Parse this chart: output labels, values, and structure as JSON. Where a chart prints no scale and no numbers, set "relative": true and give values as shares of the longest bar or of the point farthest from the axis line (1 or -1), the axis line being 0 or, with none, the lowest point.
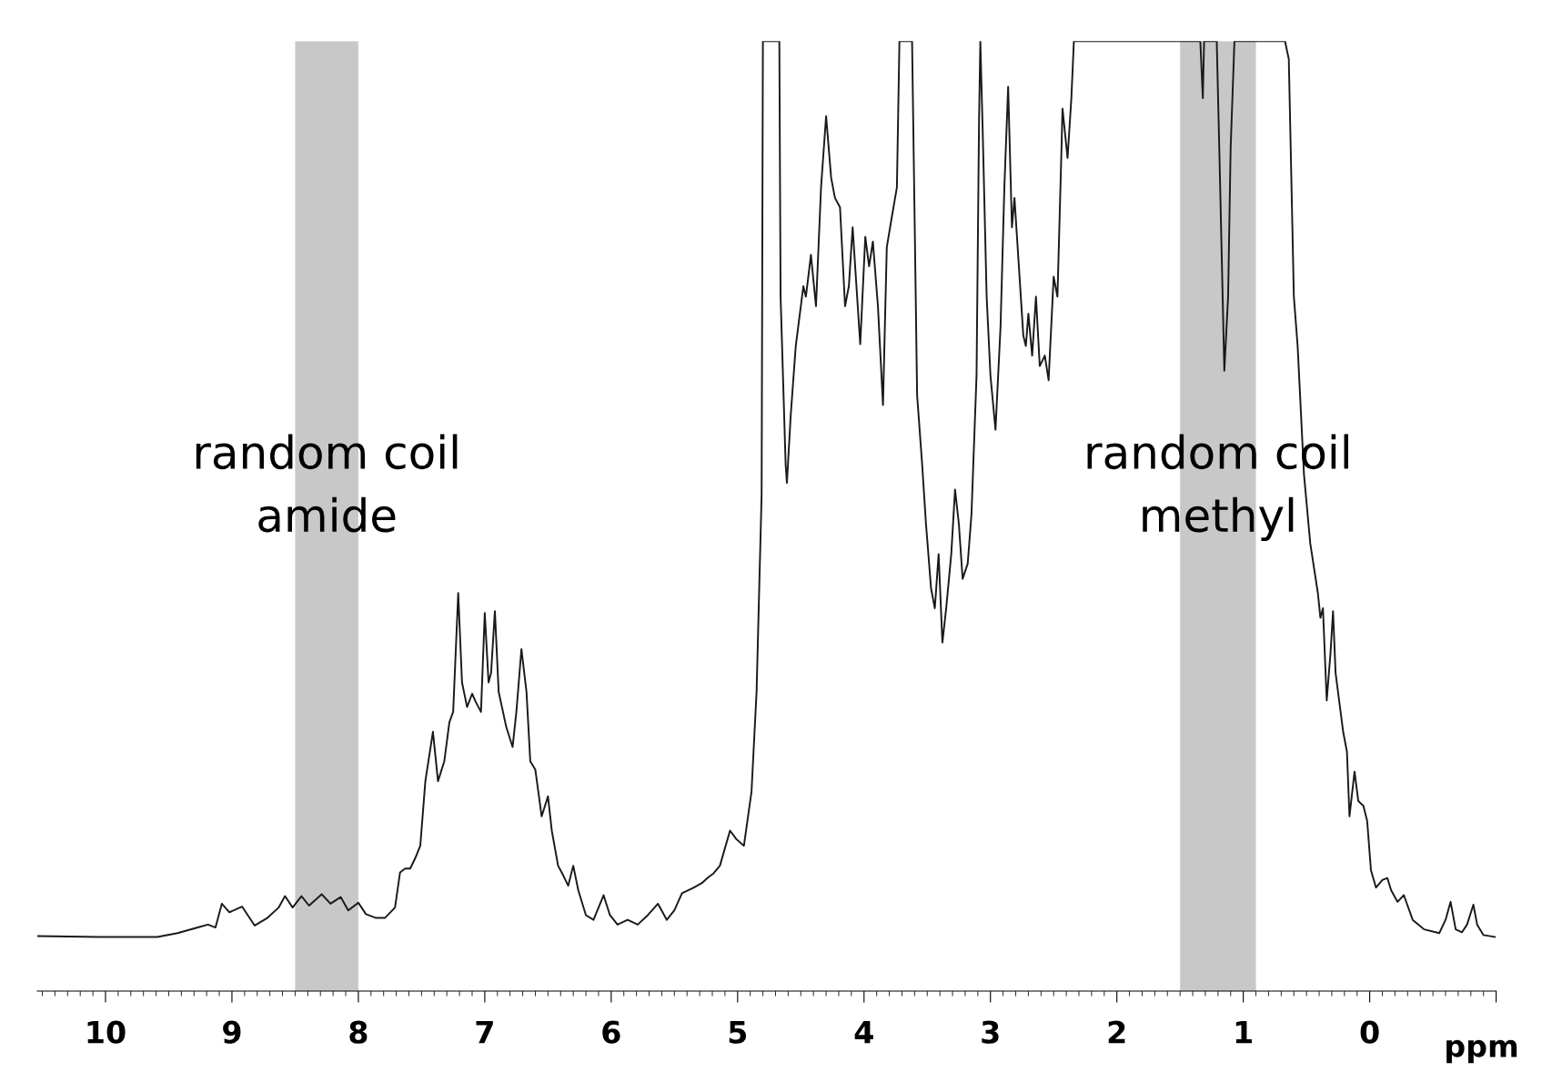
{
  "chart_data": {
    "type": "line",
    "relative": true,
    "xlabel": "ppm",
    "xlim": [
      10.54,
      -1.0
    ],
    "xticks": [
      10,
      9,
      8,
      7,
      6,
      5,
      4,
      3,
      2,
      1,
      0,
      {
        "value": -1,
        "label": null
      }
    ],
    "grid": false,
    "legend": false,
    "marker": "none",
    "line_style": "solid",
    "bands": [
      {
        "axis": "x",
        "from": 8.5,
        "to": 8.0,
        "label": "random coil\namide",
        "color": "#c8c8c8"
      },
      {
        "axis": "x",
        "from": 1.5,
        "to": 0.9,
        "label": "random coil\nmethyl",
        "color": "#c8c8c8"
      }
    ],
    "series": [
      {
        "color": "#1a1a1a",
        "x": [
          10.54,
          10.05,
          9.59,
          9.43,
          9.27,
          9.19,
          9.13,
          9.08,
          9.02,
          8.92,
          8.82,
          8.72,
          8.63,
          8.58,
          8.52,
          8.45,
          8.39,
          8.29,
          8.22,
          8.14,
          8.08,
          8.0,
          7.94,
          7.86,
          7.79,
          7.71,
          7.67,
          7.63,
          7.59,
          7.55,
          7.51,
          7.47,
          7.41,
          7.37,
          7.32,
          7.28,
          7.25,
          7.21,
          7.18,
          7.14,
          7.1,
          7.07,
          7.03,
          7.0,
          6.97,
          6.95,
          6.92,
          6.89,
          6.83,
          6.78,
          6.75,
          6.71,
          6.67,
          6.64,
          6.6,
          6.55,
          6.5,
          6.47,
          6.42,
          6.38,
          6.34,
          6.3,
          6.26,
          6.2,
          6.14,
          6.06,
          6.01,
          5.95,
          5.87,
          5.79,
          5.71,
          5.63,
          5.56,
          5.5,
          5.44,
          5.36,
          5.28,
          5.24,
          5.19,
          5.14,
          5.06,
          5.01,
          4.95,
          4.89,
          4.85,
          4.81,
          4.8,
          4.67,
          4.66,
          4.62,
          4.61,
          4.58,
          4.54,
          4.48,
          4.46,
          4.42,
          4.38,
          4.34,
          4.3,
          4.26,
          4.23,
          4.19,
          4.15,
          4.12,
          4.09,
          4.06,
          4.03,
          3.99,
          3.96,
          3.93,
          3.89,
          3.85,
          3.82,
          3.78,
          3.74,
          3.72,
          3.62,
          3.6,
          3.58,
          3.54,
          3.51,
          3.47,
          3.44,
          3.41,
          3.38,
          3.35,
          3.31,
          3.28,
          3.25,
          3.22,
          3.18,
          3.15,
          3.11,
          3.09,
          3.08,
          3.06,
          3.03,
          3.0,
          2.96,
          2.92,
          2.89,
          2.86,
          2.83,
          2.81,
          2.78,
          2.74,
          2.72,
          2.7,
          2.67,
          2.64,
          2.61,
          2.57,
          2.54,
          2.5,
          2.47,
          2.44,
          2.43,
          2.39,
          2.36,
          2.34,
          1.34,
          1.32,
          1.31,
          1.21,
          1.19,
          1.15,
          1.12,
          1.1,
          1.07,
          0.67,
          0.64,
          0.6,
          0.57,
          0.52,
          0.47,
          0.41,
          0.39,
          0.37,
          0.34,
          0.31,
          0.29,
          0.27,
          0.24,
          0.21,
          0.18,
          0.16,
          0.12,
          0.09,
          0.05,
          0.02,
          -0.01,
          -0.05,
          -0.1,
          -0.14,
          -0.17,
          -0.22,
          -0.27,
          -0.34,
          -0.43,
          -0.55,
          -0.6,
          -0.64,
          -0.68,
          -0.73,
          -0.77,
          -0.82,
          -0.85,
          -0.9,
          -0.99
        ],
        "values": [
          0.058,
          0.057,
          0.057,
          0.061,
          0.067,
          0.07,
          0.067,
          0.092,
          0.083,
          0.089,
          0.069,
          0.077,
          0.088,
          0.1,
          0.088,
          0.1,
          0.09,
          0.102,
          0.092,
          0.099,
          0.085,
          0.093,
          0.081,
          0.077,
          0.077,
          0.088,
          0.125,
          0.129,
          0.129,
          0.14,
          0.153,
          0.221,
          0.273,
          0.221,
          0.242,
          0.283,
          0.294,
          0.419,
          0.325,
          0.299,
          0.313,
          0.304,
          0.294,
          0.398,
          0.325,
          0.335,
          0.4,
          0.315,
          0.278,
          0.257,
          0.294,
          0.36,
          0.315,
          0.242,
          0.233,
          0.184,
          0.205,
          0.169,
          0.132,
          0.122,
          0.111,
          0.132,
          0.106,
          0.08,
          0.075,
          0.101,
          0.08,
          0.07,
          0.075,
          0.07,
          0.08,
          0.092,
          0.075,
          0.085,
          0.103,
          0.108,
          0.114,
          0.119,
          0.124,
          0.132,
          0.169,
          0.16,
          0.153,
          0.21,
          0.315,
          0.523,
          1.0,
          1.0,
          0.731,
          0.554,
          0.535,
          0.606,
          0.679,
          0.742,
          0.731,
          0.775,
          0.721,
          0.846,
          0.921,
          0.856,
          0.835,
          0.825,
          0.721,
          0.742,
          0.804,
          0.742,
          0.681,
          0.794,
          0.763,
          0.789,
          0.721,
          0.617,
          0.783,
          0.815,
          0.846,
          1.0,
          1.0,
          0.815,
          0.627,
          0.554,
          0.492,
          0.424,
          0.403,
          0.46,
          0.367,
          0.403,
          0.46,
          0.528,
          0.492,
          0.434,
          0.45,
          0.502,
          0.648,
          0.919,
          1.0,
          0.898,
          0.731,
          0.648,
          0.591,
          0.7,
          0.846,
          0.952,
          0.804,
          0.835,
          0.773,
          0.69,
          0.679,
          0.713,
          0.669,
          0.731,
          0.658,
          0.669,
          0.643,
          0.752,
          0.731,
          0.877,
          0.929,
          0.877,
          0.94,
          1.0,
          1.0,
          0.94,
          1.0,
          1.0,
          0.888,
          0.653,
          0.731,
          0.888,
          1.0,
          1.0,
          0.981,
          0.731,
          0.679,
          0.544,
          0.471,
          0.419,
          0.393,
          0.403,
          0.306,
          0.356,
          0.4,
          0.335,
          0.304,
          0.273,
          0.252,
          0.184,
          0.231,
          0.2,
          0.195,
          0.179,
          0.127,
          0.109,
          0.117,
          0.119,
          0.106,
          0.094,
          0.101,
          0.075,
          0.065,
          0.061,
          0.075,
          0.094,
          0.065,
          0.062,
          0.07,
          0.091,
          0.07,
          0.059,
          0.057
        ]
      }
    ]
  }
}
